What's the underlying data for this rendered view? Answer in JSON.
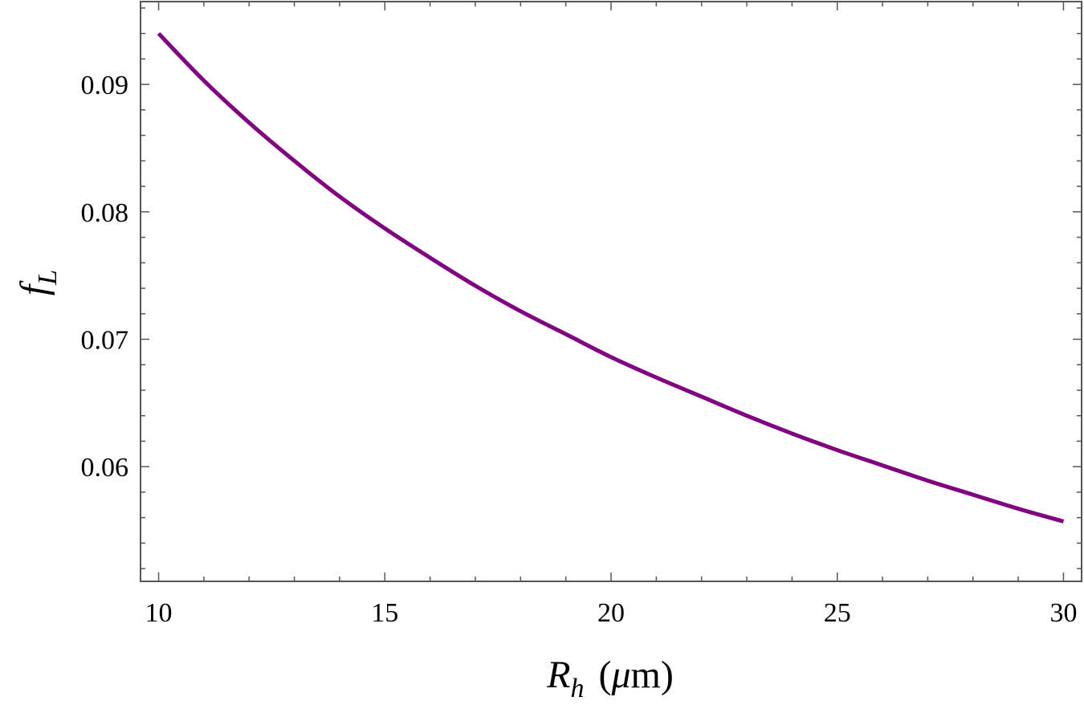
{
  "chart_data": {
    "type": "line",
    "xlabel": {
      "main": "R",
      "sub": "h",
      "unit_open": "(",
      "unit_mu": "μ",
      "unit_rest": "m)"
    },
    "ylabel": {
      "main": "f",
      "sub": "L"
    },
    "xlim": [
      9.6,
      30.4
    ],
    "ylim": [
      0.051,
      0.0965
    ],
    "xticks": [
      10,
      15,
      20,
      25,
      30
    ],
    "xtick_labels": [
      "10",
      "15",
      "20",
      "25",
      "30"
    ],
    "yticks": [
      0.06,
      0.07,
      0.08,
      0.09
    ],
    "ytick_labels": [
      "0.06",
      "0.07",
      "0.08",
      "0.09"
    ],
    "x_minor_step": 1,
    "y_minor_step": 0.002,
    "grid": false,
    "series": [
      {
        "color": "#800080",
        "x": [
          10,
          11,
          12,
          13,
          14,
          15,
          16,
          17,
          18,
          19,
          20,
          21,
          22,
          23,
          24,
          25,
          26,
          27,
          28,
          29,
          30
        ],
        "y": [
          0.094,
          0.0903,
          0.087,
          0.084,
          0.0812,
          0.0787,
          0.0764,
          0.0742,
          0.0722,
          0.0704,
          0.0686,
          0.067,
          0.0655,
          0.064,
          0.0626,
          0.0613,
          0.0601,
          0.0589,
          0.0578,
          0.0567,
          0.0557
        ]
      }
    ]
  }
}
